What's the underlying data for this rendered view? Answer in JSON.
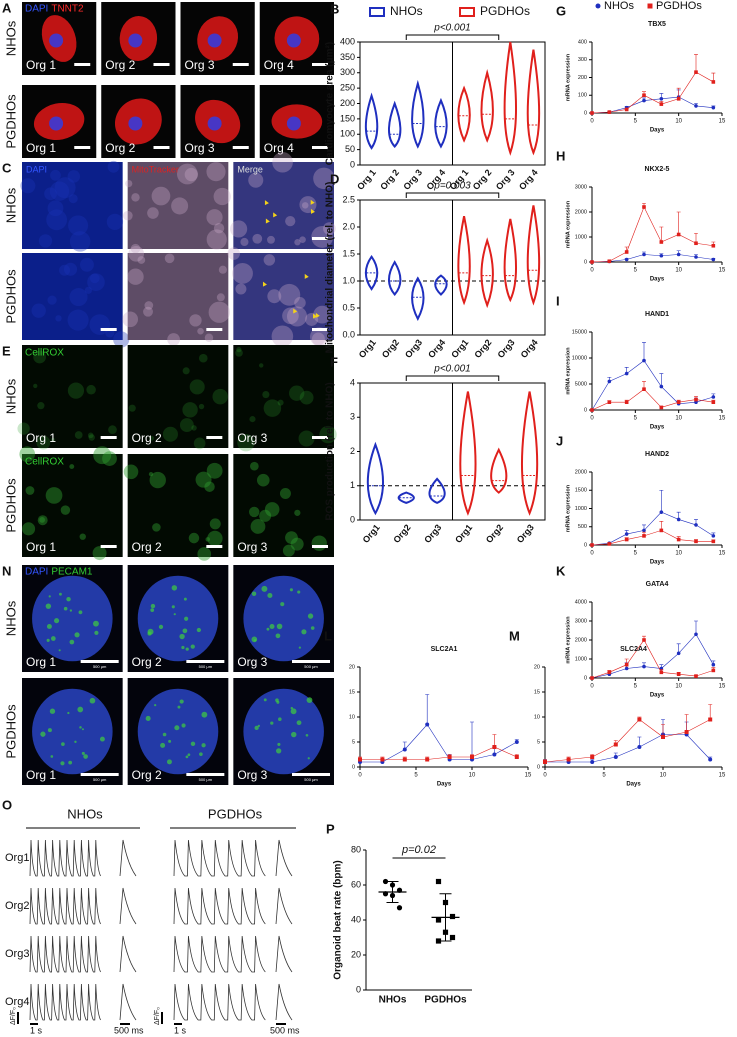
{
  "image_panels": [
    {
      "label": "A",
      "stains": [
        "DAPI",
        "TNNT2"
      ],
      "stain_colors": [
        "#3355ff",
        "#ff2a2a"
      ],
      "rows": [
        "NHOs",
        "PGDHOs"
      ],
      "tiles": [
        [
          "Org 1",
          "Org 2",
          "Org 3",
          "Org 4"
        ],
        [
          "Org 1",
          "Org 2",
          "Org 3",
          "Org 4"
        ]
      ]
    },
    {
      "label": "C",
      "stains": [
        "DAPI",
        "MitoTracker",
        "Merge"
      ],
      "stain_colors": [
        "#3355ff",
        "#dd2222",
        "#dddddd"
      ],
      "rows": [
        "NHOs",
        "PGDHOs"
      ]
    },
    {
      "label": "E",
      "stains": [
        "CellROX"
      ],
      "stain_colors": [
        "#33cc33"
      ],
      "rows": [
        "NHOs",
        "PGDHOs"
      ],
      "tiles": [
        [
          "Org 1",
          "Org 2",
          "Org 3"
        ],
        [
          "Org 1",
          "Org 2",
          "Org 3"
        ]
      ]
    },
    {
      "label": "N",
      "stains": [
        "DAPI",
        "PECAM1"
      ],
      "stain_colors": [
        "#3355ff",
        "#33cc33"
      ],
      "rows": [
        "NHOs",
        "PGDHOs"
      ],
      "tiles": [
        [
          "Org 1",
          "Org 2",
          "Org 3"
        ],
        [
          "Org 1",
          "Org 2",
          "Org 3"
        ]
      ],
      "scale": "500 μm"
    },
    {
      "label": "O",
      "groups": [
        "NHOs",
        "PGDHOs"
      ],
      "rows": [
        "Org1",
        "Org2",
        "Org3",
        "Org4"
      ],
      "scale_labels": [
        "ΔF/F₀",
        "1 s",
        "500 ms"
      ]
    }
  ],
  "chart_data": [
    {
      "type": "violin",
      "label": "B",
      "ylabel": "Cardiomyocyte area (μm²)",
      "ylim": [
        0,
        400
      ],
      "yticks": [
        0,
        50,
        100,
        150,
        200,
        250,
        300,
        350,
        400
      ],
      "annotation": "p<0.001",
      "series": [
        {
          "name": "NHOs",
          "color": "#1f2fbf",
          "categories": [
            "Org 1",
            "Org 2",
            "Org 3",
            "Org 4"
          ],
          "min": [
            55,
            60,
            60,
            60
          ],
          "median": [
            110,
            100,
            135,
            125
          ],
          "max": [
            225,
            200,
            265,
            210
          ]
        },
        {
          "name": "PGDHOs",
          "color": "#e0201c",
          "categories": [
            "Org 1",
            "Org 2",
            "Org 3",
            "Org 4"
          ],
          "min": [
            80,
            80,
            40,
            40
          ],
          "median": [
            160,
            165,
            150,
            130
          ],
          "max": [
            250,
            300,
            400,
            375
          ]
        }
      ]
    },
    {
      "type": "violin",
      "label": "D",
      "ylabel": "Mitochondrial diameter (rel. to NHO)",
      "ylim": [
        0,
        2.5
      ],
      "yticks": [
        {
          "value": 0,
          "label": "0.0"
        },
        0.5,
        {
          "value": 1,
          "label": "1.0"
        },
        1.5,
        {
          "value": 2,
          "label": "2.0"
        },
        2.5
      ],
      "refline": 1,
      "annotation": "p=0.003",
      "series": [
        {
          "color": "#1f2fbf",
          "categories": [
            "Org1",
            "Org2",
            "Org3",
            "Org4"
          ],
          "min": [
            0.85,
            0.75,
            0.3,
            0.75
          ],
          "median": [
            1.15,
            1.0,
            0.7,
            0.95
          ],
          "max": [
            1.45,
            1.35,
            1.05,
            1.1
          ]
        },
        {
          "color": "#e0201c",
          "categories": [
            "Org1",
            "Org2",
            "Org3",
            "Org4"
          ],
          "min": [
            0.6,
            0.55,
            0.65,
            0.6
          ],
          "median": [
            1.15,
            1.1,
            1.1,
            1.2
          ],
          "max": [
            2.2,
            1.75,
            2.15,
            2.4
          ]
        }
      ]
    },
    {
      "type": "violin",
      "label": "F",
      "ylabel": "ROS production (rel. to NHO)",
      "ylim": [
        0,
        4
      ],
      "yticks": [
        0,
        1,
        2,
        3,
        4
      ],
      "refline": 1,
      "annotation": "p<0.001",
      "series": [
        {
          "color": "#1f2fbf",
          "categories": [
            "Org1",
            "Org2",
            "Org3"
          ],
          "min": [
            0.2,
            0.5,
            0.5
          ],
          "median": [
            1.0,
            0.65,
            0.7
          ],
          "max": [
            2.2,
            0.8,
            1.2
          ]
        },
        {
          "color": "#e0201c",
          "categories": [
            "Org1",
            "Org2",
            "Org3"
          ],
          "min": [
            0.2,
            0.8,
            0.2
          ],
          "median": [
            1.3,
            1.15,
            1.3
          ],
          "max": [
            3.75,
            2.05,
            3.75
          ]
        }
      ]
    },
    {
      "type": "line",
      "label": "G",
      "title": "TBX5",
      "ylabel": "mRNA expression",
      "xlabel": "Days",
      "x": [
        0,
        2,
        4,
        6,
        8,
        10,
        12,
        14
      ],
      "xlim": [
        0,
        15
      ],
      "xticks": [
        0,
        5,
        10,
        15
      ],
      "ylim": [
        0,
        400
      ],
      "yticks": [
        0,
        100,
        200,
        300,
        400
      ],
      "series": [
        {
          "name": "NHOs",
          "color": "#1f2fbf",
          "marker": "circle",
          "values": [
            0,
            5,
            30,
            70,
            80,
            90,
            40,
            30
          ],
          "errors": [
            0,
            2,
            8,
            15,
            30,
            40,
            15,
            10
          ]
        },
        {
          "name": "PGDHOs",
          "color": "#e0201c",
          "marker": "square",
          "values": [
            0,
            5,
            20,
            100,
            50,
            80,
            230,
            175
          ],
          "errors": [
            0,
            2,
            5,
            20,
            15,
            60,
            100,
            50
          ]
        }
      ]
    },
    {
      "type": "line",
      "label": "H",
      "title": "NKX2-5",
      "ylabel": "mRNA expression",
      "xlabel": "Days",
      "x": [
        0,
        2,
        4,
        6,
        8,
        10,
        12,
        14
      ],
      "xlim": [
        0,
        15
      ],
      "xticks": [
        0,
        5,
        10,
        15
      ],
      "ylim": [
        0,
        3000
      ],
      "yticks": [
        0,
        1000,
        2000,
        3000
      ],
      "series": [
        {
          "color": "#1f2fbf",
          "marker": "circle",
          "values": [
            0,
            20,
            100,
            300,
            250,
            300,
            200,
            100
          ],
          "errors": [
            0,
            10,
            40,
            100,
            80,
            150,
            100,
            50
          ]
        },
        {
          "color": "#e0201c",
          "marker": "square",
          "values": [
            0,
            30,
            400,
            2200,
            800,
            1100,
            750,
            650
          ],
          "errors": [
            0,
            20,
            200,
            150,
            600,
            900,
            400,
            150
          ]
        }
      ]
    },
    {
      "type": "line",
      "label": "I",
      "title": "HAND1",
      "ylabel": "mRNA expression",
      "xlabel": "Days",
      "x": [
        0,
        2,
        4,
        6,
        8,
        10,
        12,
        14
      ],
      "xlim": [
        0,
        15
      ],
      "xticks": [
        0,
        5,
        10,
        15
      ],
      "ylim": [
        0,
        15000
      ],
      "yticks": [
        0,
        5000,
        10000,
        15000
      ],
      "series": [
        {
          "color": "#1f2fbf",
          "marker": "circle",
          "values": [
            0,
            5500,
            7000,
            9500,
            4500,
            1200,
            1500,
            2500
          ],
          "errors": [
            0,
            800,
            1200,
            3500,
            2500,
            500,
            800,
            600
          ]
        },
        {
          "color": "#e0201c",
          "marker": "square",
          "values": [
            0,
            1500,
            1500,
            4000,
            500,
            1500,
            2000,
            1500
          ],
          "errors": [
            0,
            300,
            400,
            1500,
            200,
            400,
            600,
            400
          ]
        }
      ]
    },
    {
      "type": "line",
      "label": "J",
      "title": "HAND2",
      "ylabel": "mRNA expression",
      "xlabel": "Days",
      "x": [
        0,
        2,
        4,
        6,
        8,
        10,
        12,
        14
      ],
      "xlim": [
        0,
        15
      ],
      "xticks": [
        0,
        5,
        10,
        15
      ],
      "ylim": [
        0,
        2000
      ],
      "yticks": [
        0,
        500,
        1000,
        1500,
        2000
      ],
      "series": [
        {
          "color": "#1f2fbf",
          "marker": "circle",
          "values": [
            0,
            50,
            300,
            400,
            900,
            700,
            550,
            250
          ],
          "errors": [
            0,
            20,
            100,
            150,
            600,
            200,
            150,
            80
          ]
        },
        {
          "color": "#e0201c",
          "marker": "square",
          "values": [
            0,
            30,
            150,
            250,
            400,
            150,
            100,
            100
          ],
          "errors": [
            0,
            10,
            50,
            100,
            250,
            80,
            50,
            40
          ]
        }
      ]
    },
    {
      "type": "line",
      "label": "K",
      "title": "GATA4",
      "ylabel": "mRNA expression",
      "xlabel": "Days",
      "x": [
        0,
        2,
        4,
        6,
        8,
        10,
        12,
        14
      ],
      "xlim": [
        0,
        15
      ],
      "xticks": [
        0,
        5,
        10,
        15
      ],
      "ylim": [
        0,
        4000
      ],
      "yticks": [
        0,
        1000,
        2000,
        3000,
        4000
      ],
      "series": [
        {
          "color": "#1f2fbf",
          "marker": "circle",
          "values": [
            0,
            200,
            500,
            600,
            500,
            1300,
            2300,
            700
          ],
          "errors": [
            0,
            80,
            300,
            200,
            200,
            500,
            700,
            200
          ]
        },
        {
          "color": "#e0201c",
          "marker": "square",
          "values": [
            0,
            300,
            700,
            2000,
            300,
            200,
            100,
            400
          ],
          "errors": [
            0,
            100,
            300,
            200,
            150,
            100,
            50,
            150
          ]
        }
      ]
    },
    {
      "type": "line",
      "label": "L",
      "title": "SLC2A1",
      "xlabel": "Days",
      "x": [
        0,
        2,
        4,
        6,
        8,
        10,
        12,
        14
      ],
      "xlim": [
        0,
        15
      ],
      "xticks": [
        0,
        5,
        10,
        15
      ],
      "ylim": [
        0,
        20
      ],
      "yticks": [
        0,
        5,
        10,
        15,
        20
      ],
      "series": [
        {
          "color": "#1f2fbf",
          "marker": "circle",
          "values": [
            1,
            1,
            3.5,
            8.5,
            1.5,
            1.5,
            2.5,
            5
          ],
          "errors": [
            0.5,
            0.5,
            1.5,
            6,
            1,
            7.5,
            1.5,
            0.5
          ]
        },
        {
          "color": "#e0201c",
          "marker": "square",
          "values": [
            1.5,
            1.5,
            1.5,
            1.5,
            2,
            2,
            4,
            2
          ],
          "errors": [
            0.5,
            0.5,
            0.5,
            0.5,
            0.5,
            0.5,
            2.5,
            0.5
          ]
        }
      ]
    },
    {
      "type": "line",
      "label": "M",
      "title": "SLC2A4",
      "xlabel": "Days",
      "x": [
        0,
        2,
        4,
        6,
        8,
        10,
        12,
        14
      ],
      "xlim": [
        0,
        15
      ],
      "xticks": [
        0,
        5,
        10,
        15
      ],
      "ylim": [
        0,
        20
      ],
      "yticks": [
        0,
        5,
        10,
        15,
        20
      ],
      "series": [
        {
          "color": "#1f2fbf",
          "marker": "circle",
          "values": [
            1,
            1,
            1,
            2,
            4,
            6.5,
            6.5,
            1.5
          ],
          "errors": [
            0.5,
            0.5,
            0.5,
            0.8,
            2,
            3,
            2.5,
            0.5
          ]
        },
        {
          "color": "#e0201c",
          "marker": "square",
          "values": [
            1,
            1.5,
            2,
            4.5,
            9.5,
            6,
            7,
            9.5
          ],
          "errors": [
            0.5,
            0.5,
            0.5,
            0.8,
            0.5,
            2.5,
            3.5,
            3
          ]
        }
      ]
    },
    {
      "type": "dot",
      "label": "P",
      "ylabel": "Organoid beat rate (bpm)",
      "ylim": [
        0,
        80
      ],
      "yticks": [
        0,
        20,
        40,
        60,
        80
      ],
      "annotation": "p=0.02",
      "categories": [
        "NHOs",
        "PGDHOs"
      ],
      "markers": [
        "circle",
        "square"
      ],
      "color": "#000000",
      "points": [
        [
          62,
          60,
          57,
          55,
          54,
          47
        ],
        [
          62,
          50,
          42,
          40,
          33,
          30,
          28
        ]
      ],
      "mean": [
        56,
        41.5
      ],
      "sd": [
        6,
        13.5
      ]
    }
  ]
}
